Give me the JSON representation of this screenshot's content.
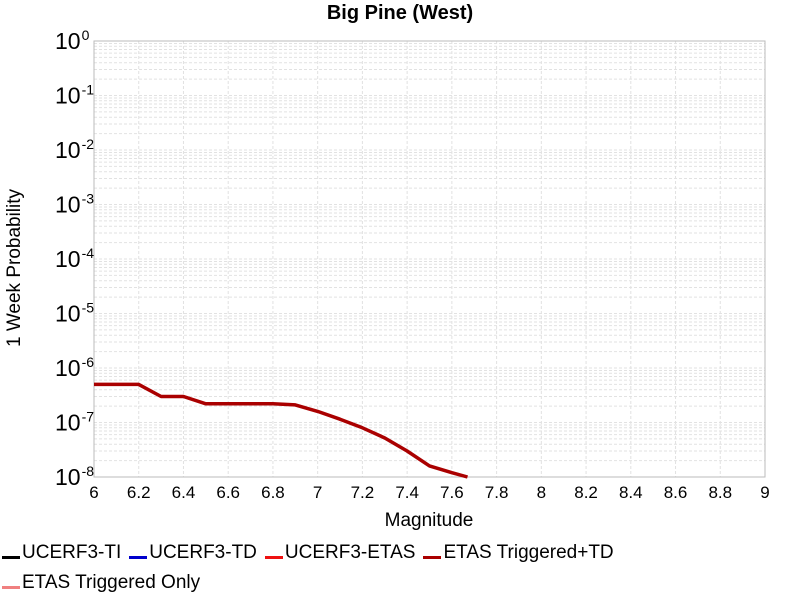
{
  "chart_data": {
    "type": "line",
    "title": "Big Pine (West)",
    "xlabel": "Magnitude",
    "ylabel": "1 Week Probability",
    "xlim": [
      6,
      9
    ],
    "ylim": [
      1e-08,
      1
    ],
    "yscale": "log",
    "grid": true,
    "x_ticks": [
      "6",
      "6.2",
      "6.4",
      "6.6",
      "6.8",
      "7",
      "7.2",
      "7.4",
      "7.6",
      "7.8",
      "8",
      "8.2",
      "8.4",
      "8.6",
      "8.8",
      "9"
    ],
    "y_ticks": [
      {
        "base": "10",
        "exp": "0"
      },
      {
        "base": "10",
        "exp": "-1"
      },
      {
        "base": "10",
        "exp": "-2"
      },
      {
        "base": "10",
        "exp": "-3"
      },
      {
        "base": "10",
        "exp": "-4"
      },
      {
        "base": "10",
        "exp": "-5"
      },
      {
        "base": "10",
        "exp": "-6"
      },
      {
        "base": "10",
        "exp": "-7"
      },
      {
        "base": "10",
        "exp": "-8"
      }
    ],
    "legend_placement": "bottom",
    "series": [
      {
        "name": "UCERF3-TI",
        "color": "#000000",
        "x": [],
        "y": []
      },
      {
        "name": "UCERF3-TD",
        "color": "#0000cc",
        "x": [],
        "y": []
      },
      {
        "name": "UCERF3-ETAS",
        "color": "#ee1111",
        "x": [],
        "y": []
      },
      {
        "name": "ETAS Triggered+TD",
        "color": "#aa0000",
        "x": [
          6.0,
          6.1,
          6.2,
          6.3,
          6.4,
          6.5,
          6.6,
          6.7,
          6.8,
          6.9,
          7.0,
          7.1,
          7.2,
          7.3,
          7.4,
          7.5,
          7.6,
          7.67
        ],
        "y": [
          5e-07,
          5e-07,
          5e-07,
          3e-07,
          3e-07,
          2.2e-07,
          2.2e-07,
          2.2e-07,
          2.2e-07,
          2.1e-07,
          1.6e-07,
          1.15e-07,
          8e-08,
          5.2e-08,
          3e-08,
          1.6e-08,
          1.2e-08,
          1e-08
        ]
      },
      {
        "name": "ETAS Triggered Only",
        "color": "#f08080",
        "x": [],
        "y": []
      }
    ]
  }
}
